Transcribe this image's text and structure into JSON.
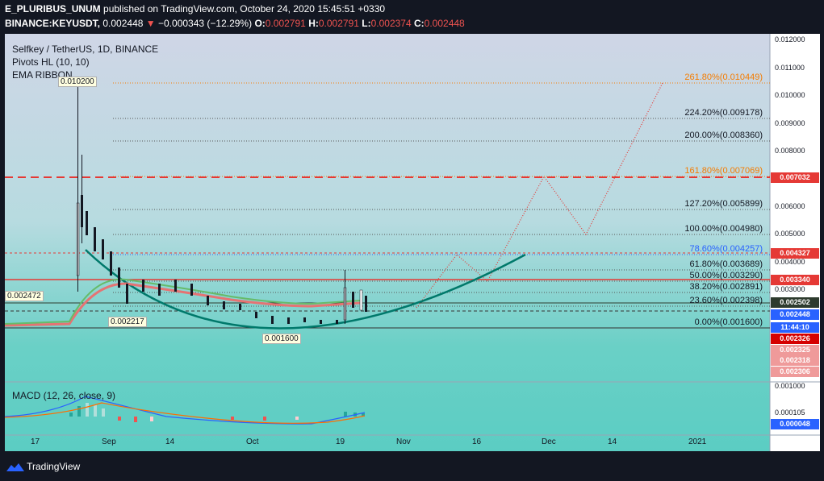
{
  "header": {
    "author": "E_PLURIBUS_UNUM",
    "published": "published on TradingView.com, October 24, 2020 15:45:51 +0330",
    "symbol": "BINANCE:KEYUSDT,",
    "last": "0.002448",
    "change_arrow": "▼",
    "change": "−0.000343 (−12.29%)",
    "o_label": "O:",
    "o_val": "0.002791",
    "h_label": "H:",
    "h_val": "0.002791",
    "l_label": "L:",
    "l_val": "0.002374",
    "c_label": "C:",
    "c_val": "0.002448"
  },
  "legend": {
    "title": "Selfkey / TetherUS, 1D, BINANCE",
    "pivots": "Pivots HL (10, 10)",
    "ema": "EMA RIBBON",
    "macd": "MACD (12, 26, close, 9)"
  },
  "fib_levels": [
    {
      "label": "261.80%(0.010449)",
      "color": "orange"
    },
    {
      "label": "224.20%(0.009178)",
      "color": "default"
    },
    {
      "label": "200.00%(0.008360)",
      "color": "default"
    },
    {
      "label": "161.80%(0.007069)",
      "color": "orange"
    },
    {
      "label": "127.20%(0.005899)",
      "color": "default"
    },
    {
      "label": "100.00%(0.004980)",
      "color": "default"
    },
    {
      "label": "78.60%(0.004257)",
      "color": "blue"
    },
    {
      "label": "61.80%(0.003689)",
      "color": "default"
    },
    {
      "label": "50.00%(0.003290)",
      "color": "default"
    },
    {
      "label": "38.20%(0.002891)",
      "color": "default"
    },
    {
      "label": "23.60%(0.002398)",
      "color": "default"
    },
    {
      "label": "0.00%(0.001600)",
      "color": "default"
    }
  ],
  "price_axis": [
    "0.012000",
    "0.011000",
    "0.010000",
    "0.009000",
    "0.008000",
    "0.006000",
    "0.005000",
    "0.004000",
    "0.003000",
    "0.001000"
  ],
  "price_tags": [
    {
      "text": "0.007032",
      "color": "#e53935"
    },
    {
      "text": "0.004327",
      "color": "#e53935"
    },
    {
      "text": "0.003340",
      "color": "#e53935"
    },
    {
      "text": "0.002502",
      "color": "#2e3b2e"
    },
    {
      "text": "0.002448",
      "color": "#2962ff"
    },
    {
      "text": "11:44:10",
      "color": "#2962ff"
    },
    {
      "text": "0.002326",
      "color": "#d50000"
    },
    {
      "text": "0.002325",
      "color": "#ef9a9a"
    },
    {
      "text": "0.002318",
      "color": "#ef9a9a"
    },
    {
      "text": "0.002306",
      "color": "#ef9a9a"
    }
  ],
  "macd_axis": [
    "0.000105"
  ],
  "macd_tag": {
    "text": "0.000048",
    "color": "#2962ff"
  },
  "pivot_notes": [
    "0.010200",
    "0.002472",
    "0.002217",
    "0.001600"
  ],
  "x_axis": [
    "17",
    "Sep",
    "14",
    "Oct",
    "19",
    "Nov",
    "16",
    "Dec",
    "14",
    "2021"
  ],
  "footer": {
    "brand": "TradingView"
  }
}
